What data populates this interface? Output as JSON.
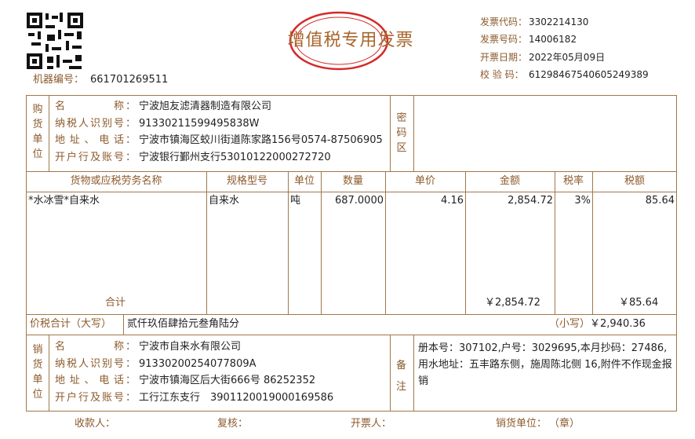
{
  "header": {
    "title": "增值税专用发票",
    "machine_label": "机器编号：",
    "machine_no": "661701269511",
    "meta": [
      {
        "label": "发票代码：",
        "value": "3302214130"
      },
      {
        "label": "发票号码：",
        "value": "14006182"
      },
      {
        "label": "开票日期：",
        "value": "2022年05月09日"
      },
      {
        "label": "校 验 码：",
        "value": "61298467540605249389"
      }
    ]
  },
  "buyer": {
    "section": "购货单位",
    "cipher_label": "密码区",
    "fields": [
      {
        "label": "名称",
        "colon": "：",
        "value": "宁波旭友滤清器制造有限公司"
      },
      {
        "label": "纳税人识别号",
        "colon": "：",
        "value": "91330211599495838W"
      },
      {
        "label": "地址、电话",
        "colon": "：",
        "value": "宁波市镇海区蛟川街道陈家路156号0574-87506905"
      },
      {
        "label": "开户行及账号",
        "colon": "：",
        "value": "宁波银行鄞州支行53010122000272720"
      }
    ]
  },
  "items": {
    "headers": [
      "货物或应税劳务名称",
      "规格型号",
      "单位",
      "数量",
      "单价",
      "金额",
      "税率",
      "税额"
    ],
    "rows": [
      [
        "*水冰雪*自来水",
        "自来水",
        "吨",
        "687.0000",
        "4.16",
        "2,854.72",
        "3%",
        "85.64"
      ]
    ],
    "total_label": "合计",
    "total_amount": "￥2,854.72",
    "total_tax": "￥85.64"
  },
  "grand_total": {
    "label": "价税合计（大写）",
    "words": "贰仟玖佰肆拾元叁角陆分",
    "small_label": "（小写）",
    "amount": "￥2,940.36"
  },
  "seller": {
    "section": "销货单位",
    "remark_label": "备注",
    "fields": [
      {
        "label": "名称",
        "colon": "：",
        "value": "宁波市自来水有限公司"
      },
      {
        "label": "纳税人识别号",
        "colon": "：",
        "value": "91330200254077809A"
      },
      {
        "label": "地址、电话",
        "colon": "：",
        "value": "宁波市镇海区后大街666号 86252352"
      },
      {
        "label": "开户行及账号",
        "colon": "：",
        "value": "工行江东支行　3901120019000169586"
      }
    ],
    "remark": "册本号：307102,户号：3029695,本月抄码：27486,用水地址：五丰路东侧，施周陈北侧 16,附件不作现金报销"
  },
  "footer": {
    "payee": "收款人：",
    "reviewer": "复核：",
    "drawer": "开票人：",
    "seller_unit": "销货单位：",
    "stamp": "（章）"
  }
}
